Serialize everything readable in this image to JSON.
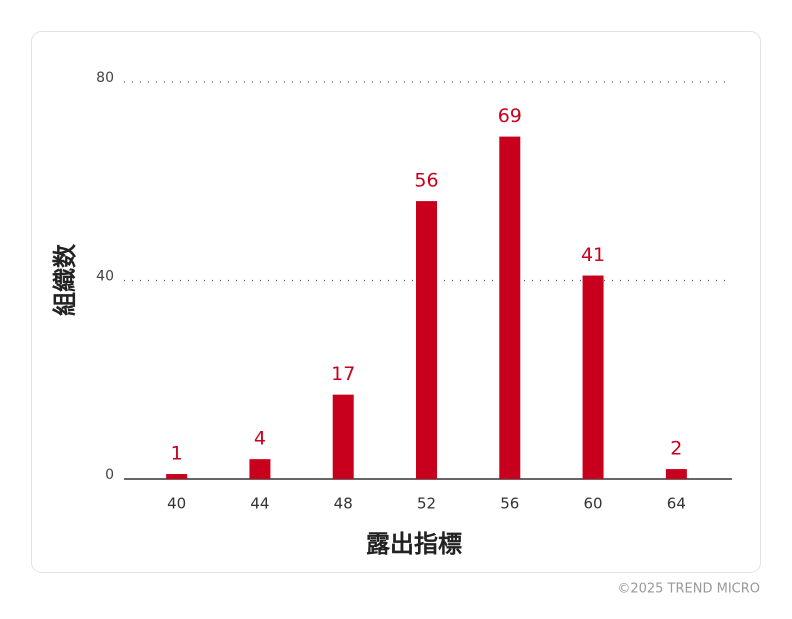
{
  "chart_data": {
    "type": "bar",
    "y_label": "組織数",
    "x_label": "露出指標",
    "categories": [
      "40",
      "44",
      "48",
      "52",
      "56",
      "60",
      "64"
    ],
    "values": [
      1,
      4,
      17,
      56,
      69,
      41,
      2
    ],
    "color": "#c8001e",
    "ylim": [
      0,
      80
    ],
    "yticks": [
      0,
      40,
      80
    ],
    "grid": true
  },
  "footer": "©2025 TREND MICRO"
}
